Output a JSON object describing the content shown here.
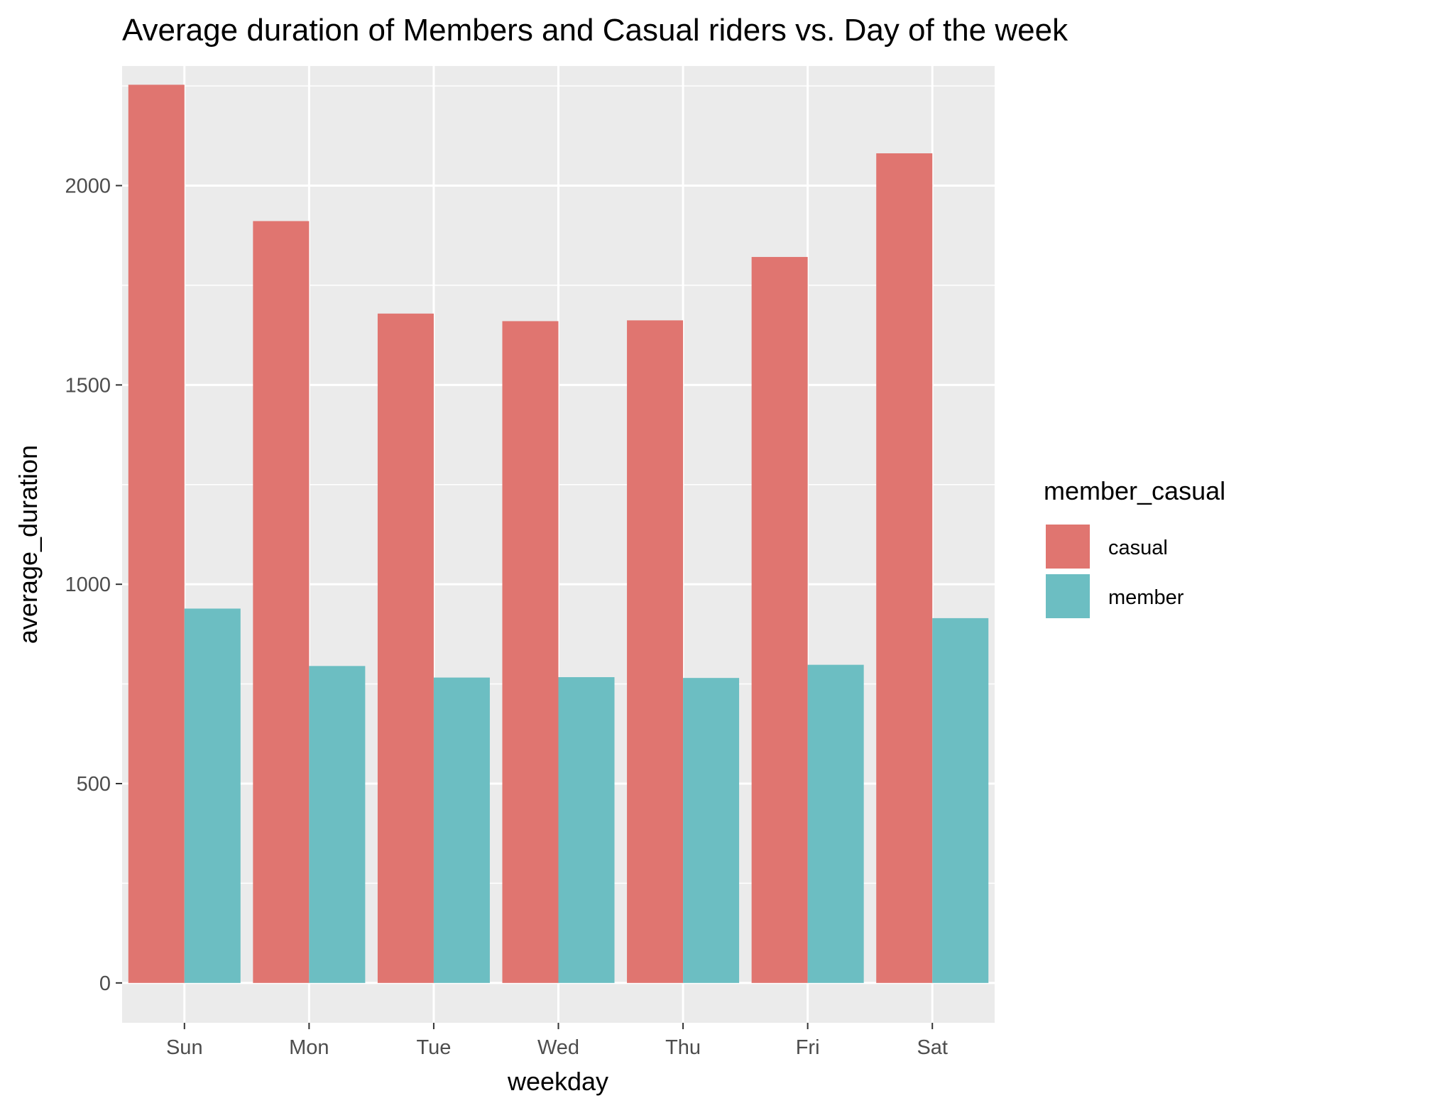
{
  "chart_data": {
    "type": "bar",
    "title": "Average duration of Members and Casual riders vs. Day of the week",
    "xlabel": "weekday",
    "ylabel": "average_duration",
    "categories": [
      "Sun",
      "Mon",
      "Tue",
      "Wed",
      "Thu",
      "Fri",
      "Sat"
    ],
    "series": [
      {
        "name": "casual",
        "values": [
          2253,
          1911,
          1679,
          1660,
          1662,
          1821,
          2081
        ],
        "color": "#e07570"
      },
      {
        "name": "member",
        "values": [
          939,
          795,
          766,
          767,
          765,
          798,
          915
        ],
        "color": "#6cbec2"
      }
    ],
    "ylim": [
      -100,
      2300
    ],
    "yticks": [
      0,
      500,
      1000,
      1500,
      2000
    ],
    "ytick_labels": [
      "0",
      "500",
      "1000",
      "1500",
      "2000"
    ],
    "grid": true,
    "legend": {
      "title": "member_casual",
      "position": "right"
    },
    "panel_background": "#ebebeb",
    "gridline_color": "#ffffff"
  }
}
